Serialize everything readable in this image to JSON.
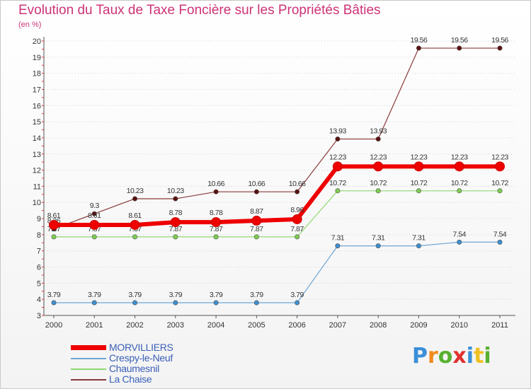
{
  "title": "Evolution du Taux de Taxe Foncière sur les Propriétés Bâties",
  "unit_label": "(en %)",
  "logo": {
    "letters": [
      "P",
      "r",
      "o",
      "x",
      "i",
      "t",
      "i"
    ],
    "colors": [
      "#3a8fd8",
      "#f08a1c",
      "#58b030",
      "#e03030",
      "#3a8fd8",
      "#f0c020",
      "#58b030"
    ]
  },
  "chart_data": {
    "type": "line",
    "title": "Evolution du Taux de Taxe Foncière sur les Propriétés Bâties",
    "ylabel": "(en %)",
    "xlabel": "",
    "x": [
      "2000",
      "2001",
      "2002",
      "2003",
      "2004",
      "2005",
      "2006",
      "2007",
      "2008",
      "2009",
      "2010",
      "2011"
    ],
    "ylim": [
      3,
      20
    ],
    "yticks": [
      "3",
      "4",
      "5",
      "6",
      "7",
      "8",
      "9",
      "10",
      "11",
      "12",
      "13",
      "14",
      "15",
      "16",
      "17",
      "18",
      "19",
      "20"
    ],
    "legend_position": "bottom-left",
    "series": [
      {
        "name": "La Chaise",
        "color": "#8b3a3a",
        "marker": "#5a0f0f",
        "values": [
          8.36,
          9.3,
          10.23,
          10.23,
          10.66,
          10.66,
          10.66,
          13.93,
          13.93,
          19.56,
          19.56,
          19.56
        ],
        "labels": [
          "8.36",
          "9.3",
          "10.23",
          "10.23",
          "10.66",
          "10.66",
          "10.66",
          "13.93",
          "13.93",
          "19.56",
          "19.56",
          "19.56"
        ]
      },
      {
        "name": "Chaumesnil",
        "color": "#90d870",
        "marker": "#7ccc50",
        "values": [
          7.87,
          7.87,
          7.87,
          7.87,
          7.87,
          7.87,
          7.87,
          10.72,
          10.72,
          10.72,
          10.72,
          10.72
        ],
        "labels": [
          "7.87",
          "7.87",
          "7.87",
          "7.87",
          "7.87",
          "7.87",
          "7.87",
          "10.72",
          "10.72",
          "10.72",
          "10.72",
          "10.72"
        ]
      },
      {
        "name": "Crespy-le-Neuf",
        "color": "#6ea6d6",
        "marker": "#3d8fd0",
        "values": [
          3.79,
          3.79,
          3.79,
          3.79,
          3.79,
          3.79,
          3.79,
          7.31,
          7.31,
          7.31,
          7.54,
          7.54
        ],
        "labels": [
          "3.79",
          "3.79",
          "3.79",
          "3.79",
          "3.79",
          "3.79",
          "3.79",
          "7.31",
          "7.31",
          "7.31",
          "7.54",
          "7.54"
        ]
      },
      {
        "name": "MORVILLIERS",
        "color": "#ee0000",
        "marker": "#ee0000",
        "values": [
          8.61,
          8.61,
          8.61,
          8.78,
          8.78,
          8.87,
          8.96,
          12.23,
          12.23,
          12.23,
          12.23,
          12.23
        ],
        "labels": [
          "8.61",
          "8.61",
          "8.61",
          "8.78",
          "8.78",
          "8.87",
          "8.96",
          "12.23",
          "12.23",
          "12.23",
          "12.23",
          "12.23"
        ]
      }
    ],
    "legend": [
      "MORVILLIERS",
      "Crespy-le-Neuf",
      "Chaumesnil",
      "La Chaise"
    ]
  }
}
